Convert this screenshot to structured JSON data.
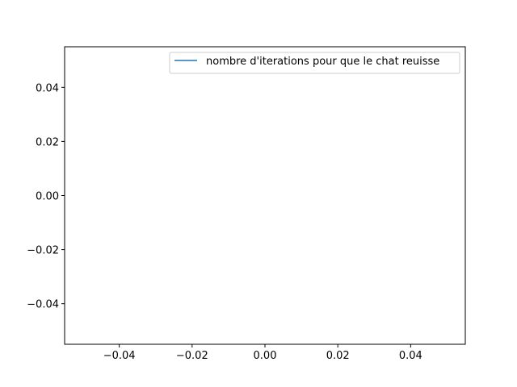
{
  "chart_data": {
    "type": "line",
    "title": "",
    "xlabel": "",
    "ylabel": "",
    "xlim": [
      -0.055,
      0.055
    ],
    "ylim": [
      -0.055,
      0.055
    ],
    "xticks": [
      -0.04,
      -0.02,
      0.0,
      0.02,
      0.04
    ],
    "yticks": [
      -0.04,
      -0.02,
      0.0,
      0.02,
      0.04
    ],
    "xtick_labels": [
      "−0.04",
      "−0.02",
      "0.00",
      "0.02",
      "0.04"
    ],
    "ytick_labels": [
      "−0.04",
      "−0.02",
      "0.00",
      "0.02",
      "0.04"
    ],
    "grid": false,
    "legend_position": "upper right",
    "series": [
      {
        "name": "nombre d'iterations pour que le chat reuisse",
        "color": "#1f77b4",
        "x": [],
        "y": []
      }
    ]
  }
}
